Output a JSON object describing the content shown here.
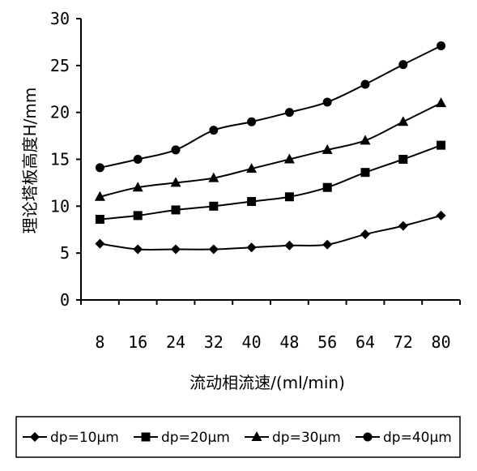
{
  "chart_data": {
    "type": "line",
    "categories": [
      "8",
      "16",
      "24",
      "32",
      "40",
      "48",
      "56",
      "64",
      "72",
      "80"
    ],
    "xlabel": "流动相流速/(ml/min)",
    "ylabel": "理论塔板高度H/mm",
    "ylim": [
      0,
      30
    ],
    "yticks": [
      0,
      5,
      10,
      15,
      20,
      25,
      30
    ],
    "grid": false,
    "legend_position": "bottom",
    "series": [
      {
        "name": "dp=10μm",
        "marker": "diamond",
        "values": [
          6.0,
          5.4,
          5.4,
          5.4,
          5.6,
          5.8,
          5.9,
          7.0,
          7.9,
          9.0
        ]
      },
      {
        "name": "dp=20μm",
        "marker": "square",
        "values": [
          8.6,
          9.0,
          9.6,
          10.0,
          10.5,
          11.0,
          12.0,
          13.6,
          15.0,
          16.5
        ]
      },
      {
        "name": "dp=30μm",
        "marker": "triangle",
        "values": [
          11.0,
          12.0,
          12.5,
          13.0,
          14.0,
          15.0,
          16.0,
          17.0,
          19.0,
          21.0
        ]
      },
      {
        "name": "dp=40μm",
        "marker": "circle",
        "values": [
          14.1,
          15.0,
          16.0,
          18.1,
          19.0,
          20.0,
          21.1,
          23.0,
          25.1,
          27.1
        ]
      }
    ]
  }
}
